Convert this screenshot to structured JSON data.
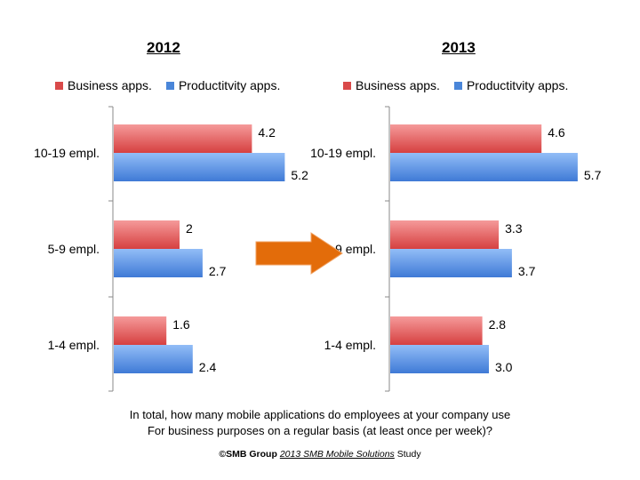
{
  "chart_data": [
    {
      "type": "bar",
      "orientation": "horizontal",
      "title": "2012",
      "categories": [
        "10-19 empl.",
        "5-9 empl.",
        "1-4 empl."
      ],
      "series": [
        {
          "name": "Business apps.",
          "color": "#d94a4a",
          "values": [
            4.2,
            2,
            1.6
          ],
          "labels": [
            "4.2",
            "2",
            "1.6"
          ]
        },
        {
          "name": "Productitvity apps.",
          "color": "#4a86d9",
          "values": [
            5.2,
            2.7,
            2.4
          ],
          "labels": [
            "5.2",
            "2.7",
            "2.4"
          ]
        }
      ],
      "xlim": [
        0,
        6
      ]
    },
    {
      "type": "bar",
      "orientation": "horizontal",
      "title": "2013",
      "categories": [
        "10-19 empl.",
        "5-9 empl.",
        "1-4 empl."
      ],
      "series": [
        {
          "name": "Business apps.",
          "color": "#d94a4a",
          "values": [
            4.6,
            3.3,
            2.8
          ],
          "labels": [
            "4.6",
            "3.3",
            "2.8"
          ]
        },
        {
          "name": "Productitvity apps.",
          "color": "#4a86d9",
          "values": [
            5.7,
            3.7,
            3.0
          ],
          "labels": [
            "5.7",
            "3.7",
            "3.0"
          ]
        }
      ],
      "xlim": [
        0,
        6
      ]
    }
  ],
  "question": [
    "In total, how many mobile applications do employees at your company use",
    "For business purposes on a regular basis (at least once per week)?"
  ],
  "source": {
    "org": "©SMB Group",
    "study": "2013 SMB Mobile Solutions",
    "suffix": " Study"
  },
  "arrow_color": "#e36c0a"
}
